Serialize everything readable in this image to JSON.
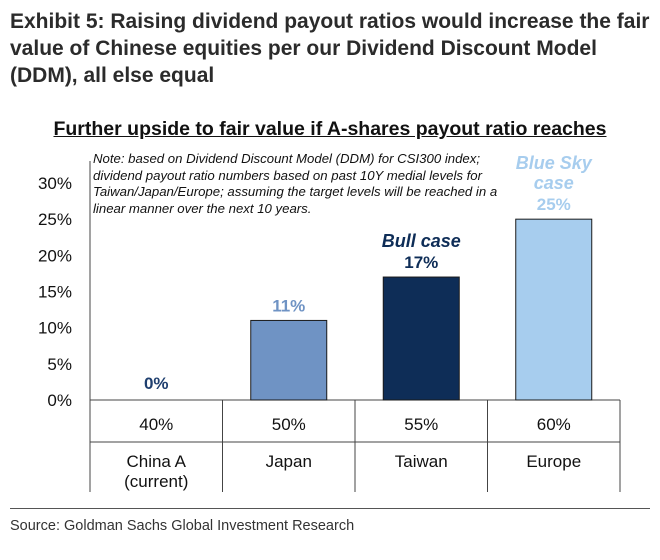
{
  "exhibit_title": "Exhibit 5: Raising dividend payout ratios would increase the fair value of Chinese equities per our Dividend Discount Model (DDM), all else equal",
  "note": "Note: based on Dividend Discount Model (DDM) for CSI300 index; dividend payout ratio numbers based on past 10Y medial levels for Taiwan/Japan/Europe; assuming the target levels will be reached in a linear manner over the next 10 years.",
  "source": "Source: Goldman Sachs Global Investment Research",
  "colors": {
    "china": "#1f3f6f",
    "japan": "#6f93c4",
    "taiwan": "#0e2d57",
    "europe": "#a7cdee"
  },
  "chart_data": {
    "type": "bar",
    "title": "Further upside to fair value if A-shares payout ratio reaches",
    "categories": [
      "China A (current)",
      "Japan",
      "Taiwan",
      "Europe"
    ],
    "category_lines": [
      [
        "China A",
        "(current)"
      ],
      [
        "Japan"
      ],
      [
        "Taiwan"
      ],
      [
        "Europe"
      ]
    ],
    "payout_ratios": [
      "40%",
      "50%",
      "55%",
      "60%"
    ],
    "values": [
      0,
      11,
      17,
      25
    ],
    "data_labels": [
      "0%",
      "11%",
      "17%",
      "25%"
    ],
    "annotations": [
      "",
      "",
      "Bull case",
      "Blue Sky case"
    ],
    "yticks": [
      "0%",
      "5%",
      "10%",
      "15%",
      "20%",
      "25%",
      "30%"
    ],
    "ytick_values": [
      0,
      5,
      10,
      15,
      20,
      25,
      30
    ],
    "ylim": [
      0,
      30
    ],
    "grid": false,
    "legend": "none"
  }
}
